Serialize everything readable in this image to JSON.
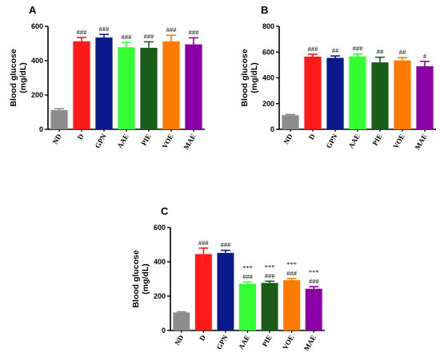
{
  "chart_data": [
    {
      "type": "bar",
      "panel_label": "A",
      "ylabel": "Blood glucose\n(mg/dL)",
      "categories": [
        "ND",
        "D",
        "GPN",
        "AAE",
        "PIE",
        "VOE",
        "MAE"
      ],
      "values": [
        112,
        513,
        535,
        478,
        475,
        513,
        495
      ],
      "errors": [
        8,
        22,
        18,
        28,
        35,
        35,
        38
      ],
      "annotations": [
        "",
        "###",
        "###",
        "###",
        "###",
        "###",
        "###"
      ],
      "ylim": [
        0,
        600
      ],
      "yticks": [
        0,
        200,
        400,
        600
      ],
      "colors": [
        "#8c8c8c",
        "#ff1a1a",
        "#0a1a8c",
        "#33ff33",
        "#1a5c1a",
        "#ff7a00",
        "#8c00a8"
      ]
    },
    {
      "type": "bar",
      "panel_label": "B",
      "ylabel": "Blood glucose\n(mg/dL)",
      "categories": [
        "ND",
        "D",
        "GPN",
        "AAE",
        "PIE",
        "VOE",
        "MAE"
      ],
      "values": [
        110,
        565,
        555,
        567,
        520,
        535,
        490
      ],
      "errors": [
        5,
        18,
        15,
        18,
        40,
        22,
        38
      ],
      "annotations": [
        "",
        "###",
        "##",
        "###",
        "##",
        "##",
        "#"
      ],
      "ylim": [
        0,
        800
      ],
      "yticks": [
        0,
        200,
        400,
        600,
        800
      ],
      "colors": [
        "#8c8c8c",
        "#ff1a1a",
        "#0a1a8c",
        "#33ff33",
        "#1a5c1a",
        "#ff7a00",
        "#8c00a8"
      ]
    },
    {
      "type": "bar",
      "panel_label": "C",
      "ylabel": "Blood glucose\n(mg/dL)",
      "categories": [
        "ND",
        "D",
        "GPN",
        "AAE",
        "PIE",
        "VOE",
        "MAE"
      ],
      "values": [
        105,
        445,
        452,
        272,
        277,
        293,
        243
      ],
      "errors": [
        4,
        35,
        15,
        10,
        10,
        10,
        12
      ],
      "annotations": [
        "",
        "###",
        "###",
        "***\n###",
        "***\n###",
        "***\n###",
        "***\n###"
      ],
      "ylim": [
        0,
        600
      ],
      "yticks": [
        0,
        200,
        400,
        600
      ],
      "colors": [
        "#8c8c8c",
        "#ff1a1a",
        "#0a1a8c",
        "#33ff33",
        "#1a5c1a",
        "#ff7a00",
        "#8c00a8"
      ]
    }
  ]
}
